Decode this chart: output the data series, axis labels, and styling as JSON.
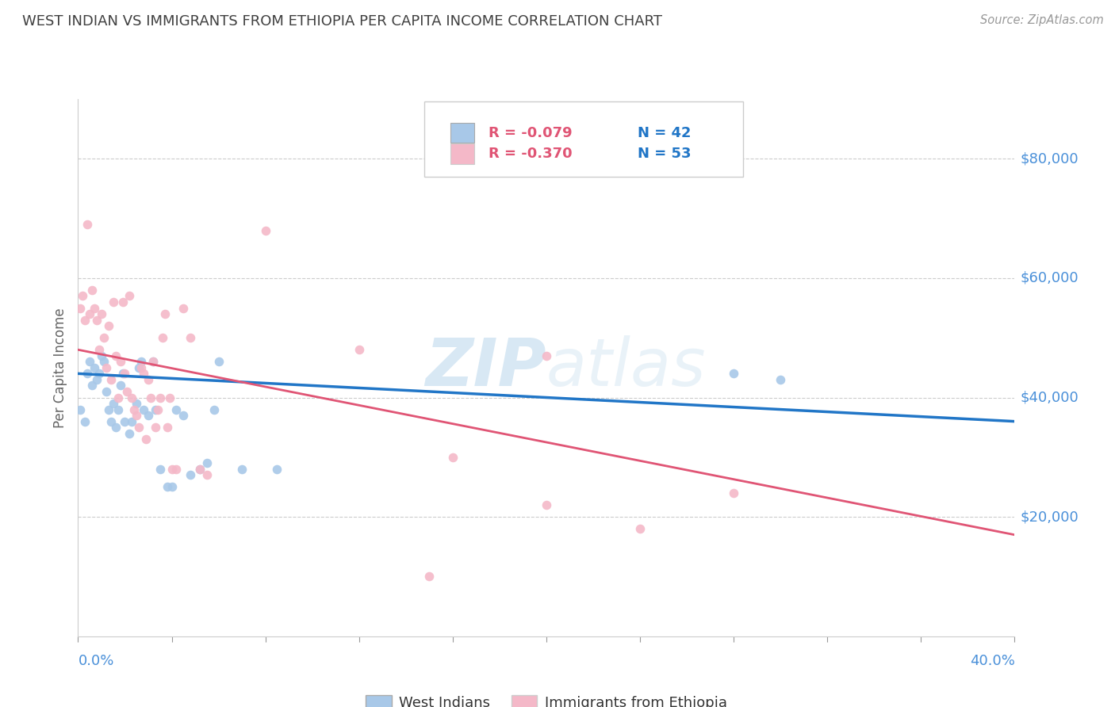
{
  "title": "WEST INDIAN VS IMMIGRANTS FROM ETHIOPIA PER CAPITA INCOME CORRELATION CHART",
  "source": "Source: ZipAtlas.com",
  "ylabel": "Per Capita Income",
  "ytick_labels": [
    "$20,000",
    "$40,000",
    "$60,000",
    "$80,000"
  ],
  "ytick_values": [
    20000,
    40000,
    60000,
    80000
  ],
  "legend_blue_label": "West Indians",
  "legend_pink_label": "Immigrants from Ethiopia",
  "legend_R_blue": "R = -0.079",
  "legend_N_blue": "N = 42",
  "legend_R_pink": "R = -0.370",
  "legend_N_pink": "N = 53",
  "watermark_zip": "ZIP",
  "watermark_atlas": "atlas",
  "blue_color": "#a8c8e8",
  "pink_color": "#f4b8c8",
  "blue_line_color": "#2176c7",
  "pink_line_color": "#e05575",
  "blue_scatter_x": [
    0.001,
    0.003,
    0.004,
    0.005,
    0.006,
    0.007,
    0.008,
    0.009,
    0.01,
    0.011,
    0.012,
    0.013,
    0.014,
    0.015,
    0.016,
    0.017,
    0.018,
    0.019,
    0.02,
    0.022,
    0.023,
    0.025,
    0.026,
    0.027,
    0.028,
    0.03,
    0.032,
    0.033,
    0.035,
    0.038,
    0.04,
    0.042,
    0.045,
    0.048,
    0.052,
    0.055,
    0.058,
    0.06,
    0.07,
    0.085,
    0.28,
    0.3
  ],
  "blue_scatter_y": [
    38000,
    36000,
    44000,
    46000,
    42000,
    45000,
    43000,
    44000,
    47000,
    46000,
    41000,
    38000,
    36000,
    39000,
    35000,
    38000,
    42000,
    44000,
    36000,
    34000,
    36000,
    39000,
    45000,
    46000,
    38000,
    37000,
    46000,
    38000,
    28000,
    25000,
    25000,
    38000,
    37000,
    27000,
    28000,
    29000,
    38000,
    46000,
    28000,
    28000,
    44000,
    43000
  ],
  "pink_scatter_x": [
    0.001,
    0.002,
    0.003,
    0.004,
    0.005,
    0.006,
    0.007,
    0.008,
    0.009,
    0.01,
    0.011,
    0.012,
    0.013,
    0.014,
    0.015,
    0.016,
    0.017,
    0.018,
    0.019,
    0.02,
    0.021,
    0.022,
    0.023,
    0.024,
    0.025,
    0.026,
    0.027,
    0.028,
    0.029,
    0.03,
    0.031,
    0.032,
    0.033,
    0.034,
    0.035,
    0.036,
    0.037,
    0.038,
    0.039,
    0.04,
    0.042,
    0.045,
    0.048,
    0.052,
    0.055,
    0.08,
    0.12,
    0.16,
    0.2,
    0.24,
    0.2,
    0.28,
    0.15
  ],
  "pink_scatter_y": [
    55000,
    57000,
    53000,
    69000,
    54000,
    58000,
    55000,
    53000,
    48000,
    54000,
    50000,
    45000,
    52000,
    43000,
    56000,
    47000,
    40000,
    46000,
    56000,
    44000,
    41000,
    57000,
    40000,
    38000,
    37000,
    35000,
    45000,
    44000,
    33000,
    43000,
    40000,
    46000,
    35000,
    38000,
    40000,
    50000,
    54000,
    35000,
    40000,
    28000,
    28000,
    55000,
    50000,
    28000,
    27000,
    68000,
    48000,
    30000,
    22000,
    18000,
    47000,
    24000,
    10000
  ],
  "xlim": [
    0.0,
    0.4
  ],
  "ylim": [
    0,
    90000
  ],
  "blue_trend_x": [
    0.0,
    0.4
  ],
  "blue_trend_y": [
    44000,
    36000
  ],
  "pink_trend_x": [
    0.0,
    0.4
  ],
  "pink_trend_y": [
    48000,
    17000
  ],
  "background_color": "#ffffff",
  "grid_color": "#cccccc",
  "title_color": "#404040",
  "axis_label_color": "#666666",
  "right_tick_color": "#4a90d9",
  "legend_text_color": "#2176c7",
  "legend_R_color": "#e05575"
}
